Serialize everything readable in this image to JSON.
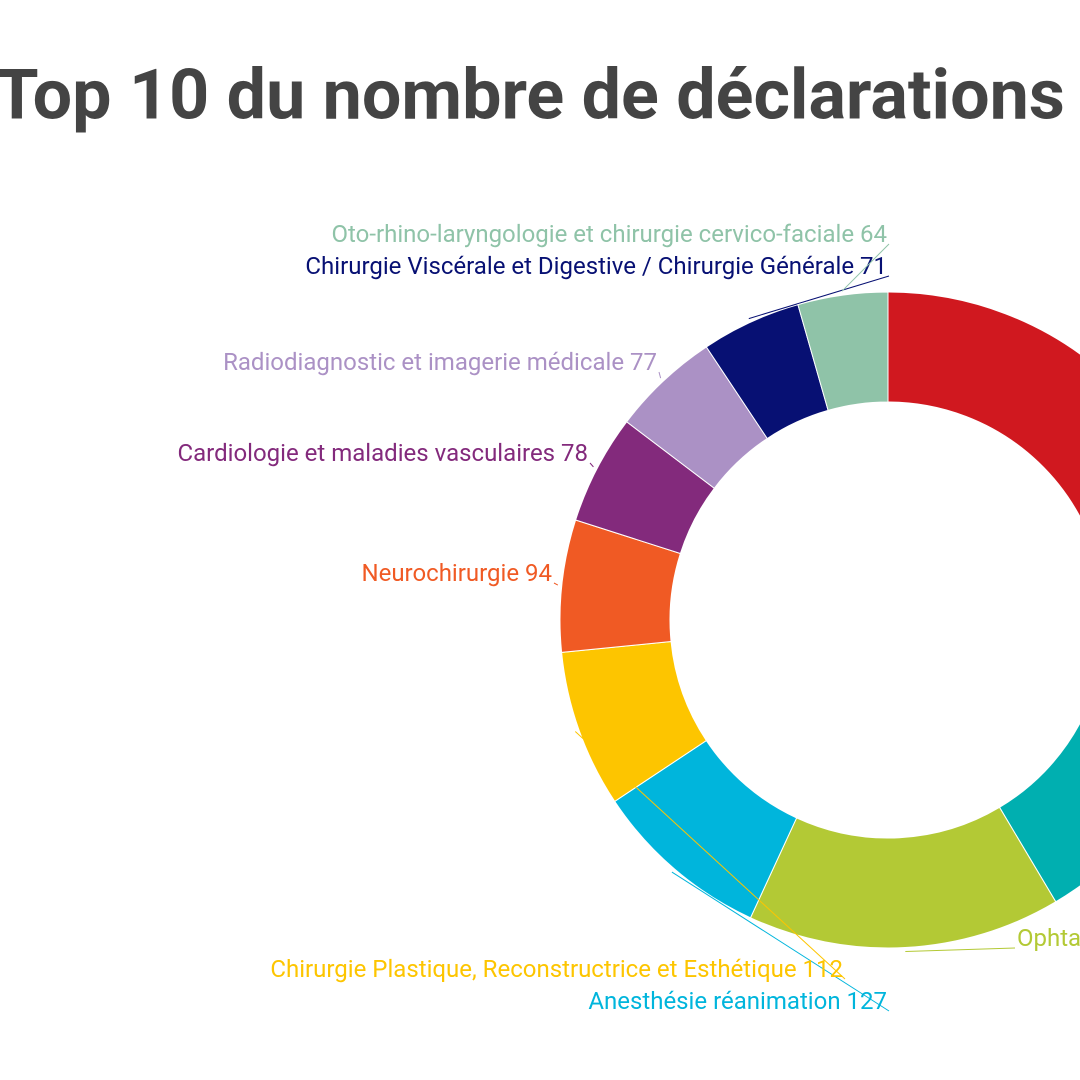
{
  "chart_data": {
    "type": "donut",
    "title": "Top 10 du nombre de déclarations",
    "categories": [
      null,
      null,
      "Ophta",
      "Anesthésie réanimation",
      "Chirurgie Plastique, Reconstructrice et Esthétique",
      "Neurochirurgie",
      "Cardiologie et maladies vasculaires",
      "Radiodiagnostic et imagerie médicale",
      "Chirurgie Viscérale et Digestive / Chirurgie Générale",
      "Oto-rhino-laryngologie et chirurgie cervico-faciale"
    ],
    "values": [
      350,
      249,
      223,
      127,
      112,
      94,
      78,
      77,
      71,
      64
    ],
    "colors": [
      "#d0181f",
      "#00afb0",
      "#b3c935",
      "#00b5dc",
      "#fdc500",
      "#f05a24",
      "#832a7c",
      "#ab91c5",
      "#071073",
      "#8fc3a8"
    ]
  }
}
